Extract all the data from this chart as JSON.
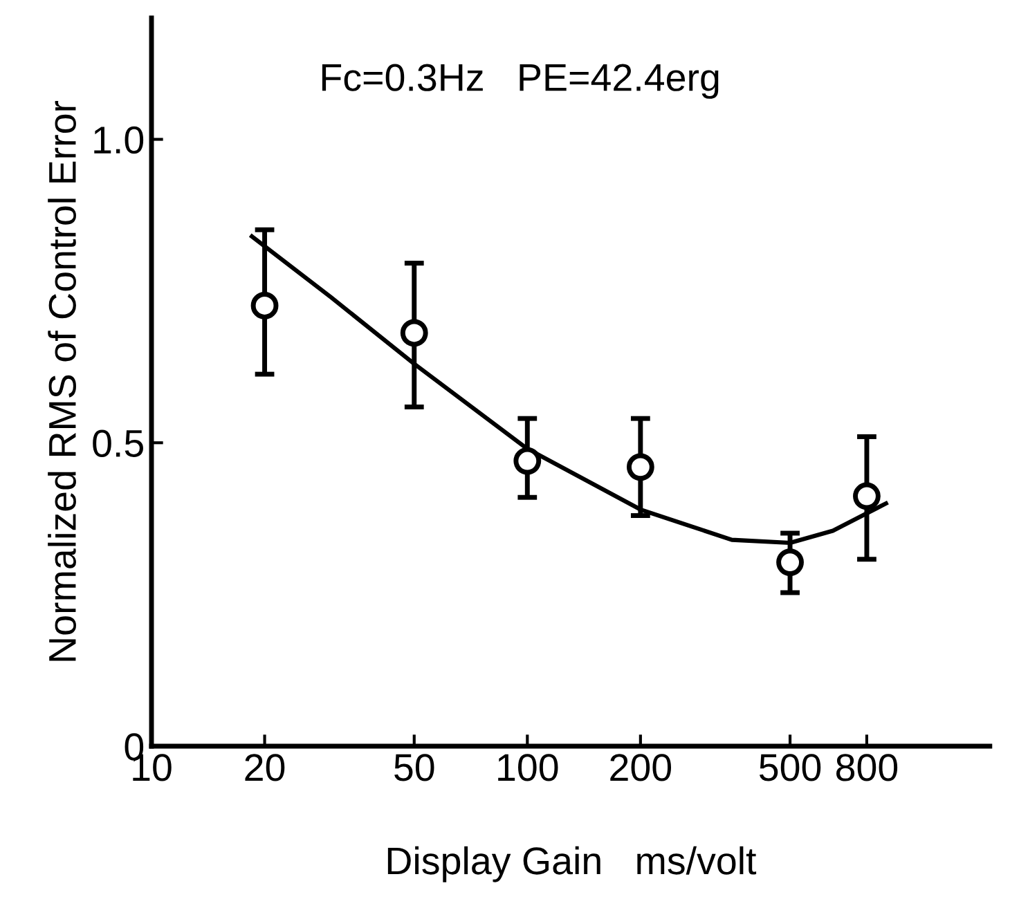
{
  "chart_data": {
    "type": "scatter",
    "xlabel": "Display Gain   ms/volt",
    "ylabel": "Normalized RMS of Control Error",
    "annotations": [
      "Fc=0.3Hz   PE=42.4erg"
    ],
    "log": "x",
    "xlim": [
      10,
      1700
    ],
    "xticks": [
      10,
      20,
      50,
      100,
      200,
      500,
      800
    ],
    "ylim": [
      0,
      1.2
    ],
    "yticks": [
      0,
      0.5,
      {
        "value": 1,
        "label": "1.0"
      }
    ],
    "grid": false,
    "legend": false,
    "marker": "circle",
    "series": [
      {
        "color": "#000000",
        "x": [
          20,
          50,
          100,
          200,
          500,
          800
        ],
        "values": [
          0.726,
          0.681,
          0.47,
          0.46,
          0.303,
          0.412
        ],
        "errors": [
          [
            0.613,
            0.851
          ],
          [
            0.559,
            0.796
          ],
          [
            0.41,
            0.54
          ],
          [
            0.38,
            0.54
          ],
          [
            0.253,
            0.351
          ],
          [
            0.308,
            0.51
          ]
        ]
      },
      {
        "type": "line",
        "color": "#000000",
        "line_style": "solid",
        "marker": "none",
        "x": [
          18.5,
          30,
          50,
          100,
          200,
          350,
          500,
          650,
          900
        ],
        "values": [
          0.84,
          0.74,
          0.63,
          0.49,
          0.39,
          0.34,
          0.335,
          0.355,
          0.4
        ]
      }
    ]
  }
}
